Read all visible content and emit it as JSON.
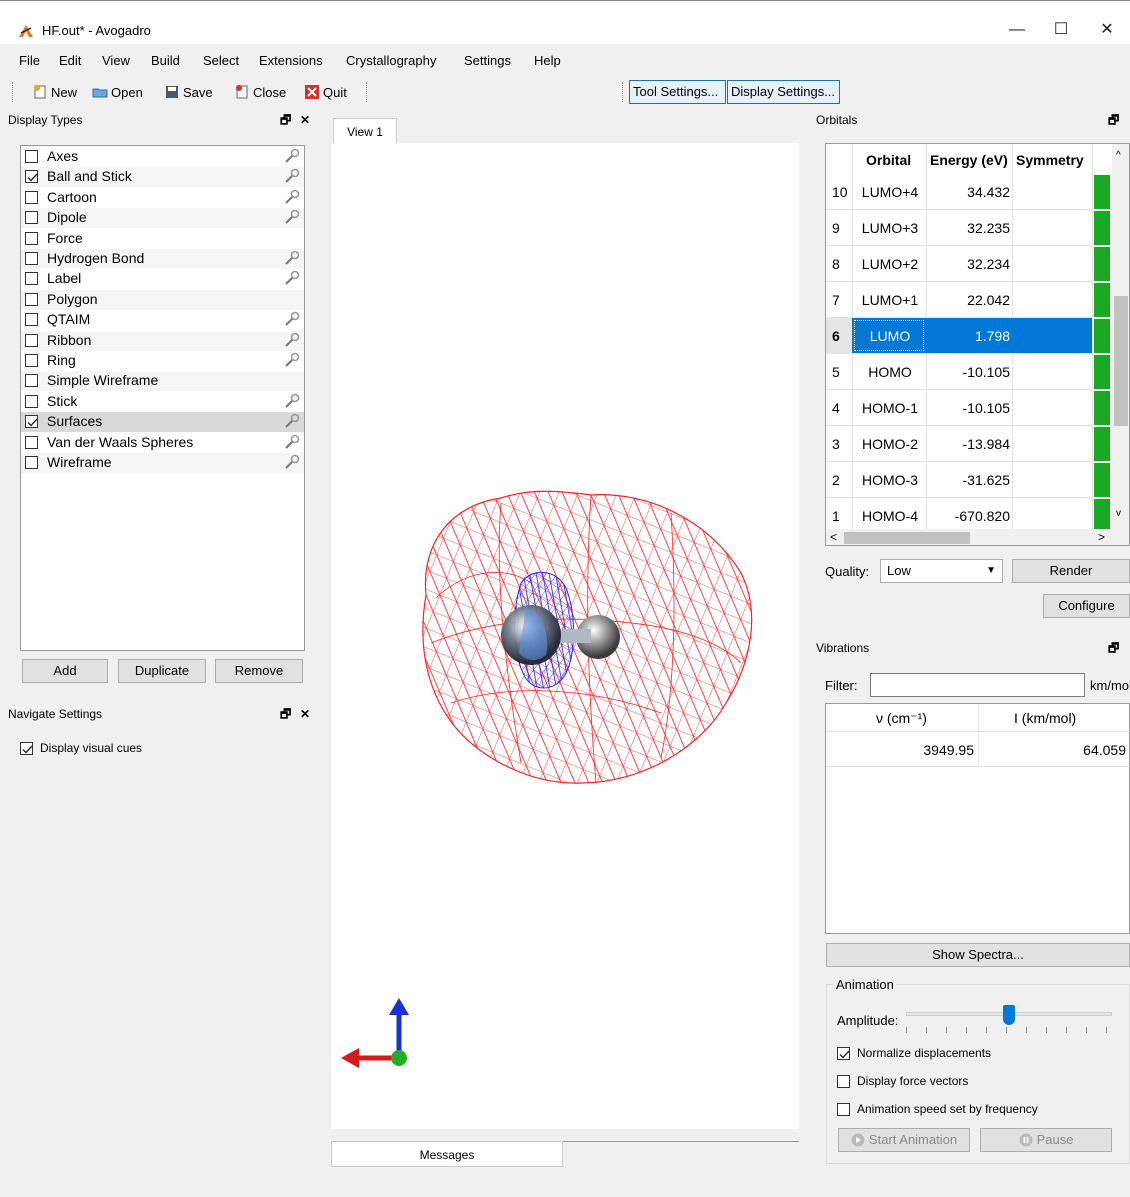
{
  "window": {
    "title": "HF.out* - Avogadro",
    "minimize": "—",
    "maximize": "☐",
    "close": "✕"
  },
  "menu": [
    "File",
    "Edit",
    "View",
    "Build",
    "Select",
    "Extensions",
    "Crystallography",
    "Settings",
    "Help"
  ],
  "toolbar": {
    "new_label": "New",
    "open_label": "Open",
    "save_label": "Save",
    "close_label": "Close",
    "quit_label": "Quit",
    "tool_settings_label": "Tool Settings...",
    "display_settings_label": "Display Settings..."
  },
  "display_types": {
    "title": "Display Types",
    "items": [
      {
        "label": "Axes",
        "checked": false,
        "configurable": true
      },
      {
        "label": "Ball and Stick",
        "checked": true,
        "configurable": true
      },
      {
        "label": "Cartoon",
        "checked": false,
        "configurable": true
      },
      {
        "label": "Dipole",
        "checked": false,
        "configurable": true
      },
      {
        "label": "Force",
        "checked": false,
        "configurable": false
      },
      {
        "label": "Hydrogen Bond",
        "checked": false,
        "configurable": true
      },
      {
        "label": "Label",
        "checked": false,
        "configurable": true
      },
      {
        "label": "Polygon",
        "checked": false,
        "configurable": false
      },
      {
        "label": "QTAIM",
        "checked": false,
        "configurable": true
      },
      {
        "label": "Ribbon",
        "checked": false,
        "configurable": true
      },
      {
        "label": "Ring",
        "checked": false,
        "configurable": true
      },
      {
        "label": "Simple Wireframe",
        "checked": false,
        "configurable": false
      },
      {
        "label": "Stick",
        "checked": false,
        "configurable": true
      },
      {
        "label": "Surfaces",
        "checked": true,
        "configurable": true
      },
      {
        "label": "Van der Waals Spheres",
        "checked": false,
        "configurable": true
      },
      {
        "label": "Wireframe",
        "checked": false,
        "configurable": true
      }
    ],
    "add_label": "Add",
    "duplicate_label": "Duplicate",
    "remove_label": "Remove"
  },
  "navigate_settings": {
    "title": "Navigate Settings",
    "display_visual_cues_label": "Display visual cues",
    "display_visual_cues_checked": true
  },
  "view": {
    "tab_label": "View 1",
    "messages_tab_label": "Messages"
  },
  "orbitals": {
    "title": "Orbitals",
    "headers": {
      "orbital": "Orbital",
      "energy": "Energy (eV)",
      "symmetry": "Symmetry"
    },
    "rows": [
      {
        "index": "10",
        "orbital": "LUMO+4",
        "energy": "34.432",
        "selected": false
      },
      {
        "index": "9",
        "orbital": "LUMO+3",
        "energy": "32.235",
        "selected": false
      },
      {
        "index": "8",
        "orbital": "LUMO+2",
        "energy": "32.234",
        "selected": false
      },
      {
        "index": "7",
        "orbital": "LUMO+1",
        "energy": "22.042",
        "selected": false
      },
      {
        "index": "6",
        "orbital": "LUMO",
        "energy": "1.798",
        "selected": true
      },
      {
        "index": "5",
        "orbital": "HOMO",
        "energy": "-10.105",
        "selected": false
      },
      {
        "index": "4",
        "orbital": "HOMO-1",
        "energy": "-10.105",
        "selected": false
      },
      {
        "index": "3",
        "orbital": "HOMO-2",
        "energy": "-13.984",
        "selected": false
      },
      {
        "index": "2",
        "orbital": "HOMO-3",
        "energy": "-31.625",
        "selected": false
      },
      {
        "index": "1",
        "orbital": "HOMO-4",
        "energy": "-670.820",
        "selected": false
      }
    ],
    "quality_label": "Quality:",
    "quality_value": "Low",
    "render_label": "Render",
    "configure_label": "Configure",
    "bar_color": "#18a822"
  },
  "vibrations": {
    "title": "Vibrations",
    "filter_label": "Filter:",
    "filter_value": "",
    "filter_unit": "km/mol",
    "headers": {
      "freq": "ν (cm⁻¹)",
      "intensity": "I (km/mol)"
    },
    "rows": [
      {
        "freq": "3949.95",
        "intensity": "64.059"
      }
    ],
    "show_spectra_label": "Show Spectra...",
    "animation_title": "Animation",
    "amplitude_label": "Amplitude:",
    "amplitude_level": 0.5,
    "normalize_label": "Normalize displacements",
    "normalize_checked": true,
    "force_vectors_label": "Display force vectors",
    "force_vectors_checked": false,
    "speed_label": "Animation speed set by frequency",
    "speed_checked": false,
    "start_animation_label": "Start Animation",
    "pause_label": "Pause"
  },
  "colors": {
    "selection": "#0078d7",
    "mesh_red": "#ff2020",
    "mesh_blue": "#2020ff",
    "accent_blue": "#1c6fb4"
  }
}
